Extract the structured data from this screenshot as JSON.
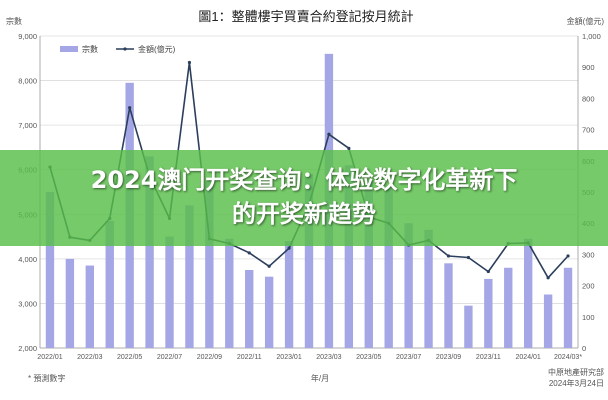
{
  "chart_data": {
    "type": "bar",
    "title": "圖1：整體樓宇買賣合約登記按月統計",
    "xlabel": "年/月",
    "left_axis_title": "宗數",
    "right_axis_title": "金額(億元)",
    "y_left": {
      "min": 2000,
      "max": 9000,
      "ticks": [
        "2,000",
        "3,000",
        "4,000",
        "5,000",
        "6,000",
        "7,000",
        "8,000",
        "9,000"
      ]
    },
    "y_right": {
      "min": 0,
      "max": 1000,
      "ticks": [
        "0",
        "100",
        "200",
        "300",
        "400",
        "500",
        "600",
        "700",
        "800",
        "900",
        "1,000"
      ]
    },
    "categories": [
      "2022/01",
      "2022/02",
      "2022/03",
      "2022/04",
      "2022/05",
      "2022/06",
      "2022/07",
      "2022/08",
      "2022/09",
      "2022/10",
      "2022/11",
      "2022/12",
      "2023/01",
      "2023/02",
      "2023/03",
      "2023/04",
      "2023/05",
      "2023/06",
      "2023/07",
      "2023/08",
      "2023/09",
      "2023/10",
      "2023/11",
      "2023/12",
      "2024/01",
      "2024/02",
      "2024/03*"
    ],
    "x_tick_labels": [
      "2022/01",
      "2022/03",
      "2022/05",
      "2022/07",
      "2022/09",
      "2022/11",
      "2023/01",
      "2023/03",
      "2023/05",
      "2023/07",
      "2023/09",
      "2023/11",
      "2024/01",
      "2024/03*"
    ],
    "series": [
      {
        "name": "宗數",
        "kind": "bar",
        "axis": "left",
        "color": "#a4a6e6",
        "values": [
          5500,
          4000,
          3850,
          4850,
          7950,
          6300,
          4500,
          5200,
          5750,
          4450,
          3750,
          3600,
          4400,
          5900,
          8600,
          6100,
          5750,
          5600,
          4800,
          4650,
          3900,
          2950,
          3550,
          3800,
          4450,
          3200,
          3800
        ]
      },
      {
        "name": "金額(億元)",
        "kind": "line",
        "axis": "right",
        "color": "#2b3f5c",
        "values": [
          580,
          355,
          345,
          415,
          770,
          550,
          415,
          915,
          350,
          335,
          305,
          262,
          320,
          460,
          685,
          640,
          420,
          400,
          330,
          345,
          295,
          290,
          245,
          335,
          337,
          225,
          295
        ]
      }
    ],
    "legend": "top-left",
    "grid": true,
    "footnote": "* 預測數字",
    "source": "中原地產研究部",
    "date_note": "2024年3月24日"
  },
  "banner": {
    "line1": "2024澳门开奖查询：体验数字化革新下",
    "line2": "的开奖新趋势"
  },
  "colors": {
    "banner_bg": "#58be48"
  }
}
